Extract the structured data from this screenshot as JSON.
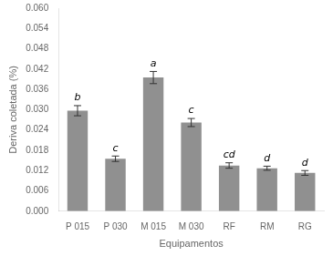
{
  "chart_data": {
    "type": "bar",
    "categories": [
      "P 015",
      "P 030",
      "M 015",
      "M 030",
      "RF",
      "RM",
      "RG"
    ],
    "values": [
      0.0297,
      0.0155,
      0.0395,
      0.0262,
      0.0135,
      0.0127,
      0.0113
    ],
    "errors": [
      0.0015,
      0.0008,
      0.0018,
      0.0012,
      0.0008,
      0.0006,
      0.0007
    ],
    "labels": [
      "b",
      "c",
      "a",
      "c",
      "cd",
      "d",
      "d"
    ],
    "color": "#909090",
    "xlabel": "Equipamentos",
    "ylabel": "Deriva coletada (%)",
    "ylim": [
      0.0,
      0.06
    ],
    "yticks": [
      {
        "value": 0.0,
        "label": "0.000"
      },
      0.006,
      0.012,
      0.018,
      0.024,
      {
        "value": 0.03,
        "label": "0.030"
      },
      0.036,
      0.042,
      0.048,
      0.054,
      {
        "value": 0.06,
        "label": "0.060"
      }
    ],
    "grid": false
  }
}
